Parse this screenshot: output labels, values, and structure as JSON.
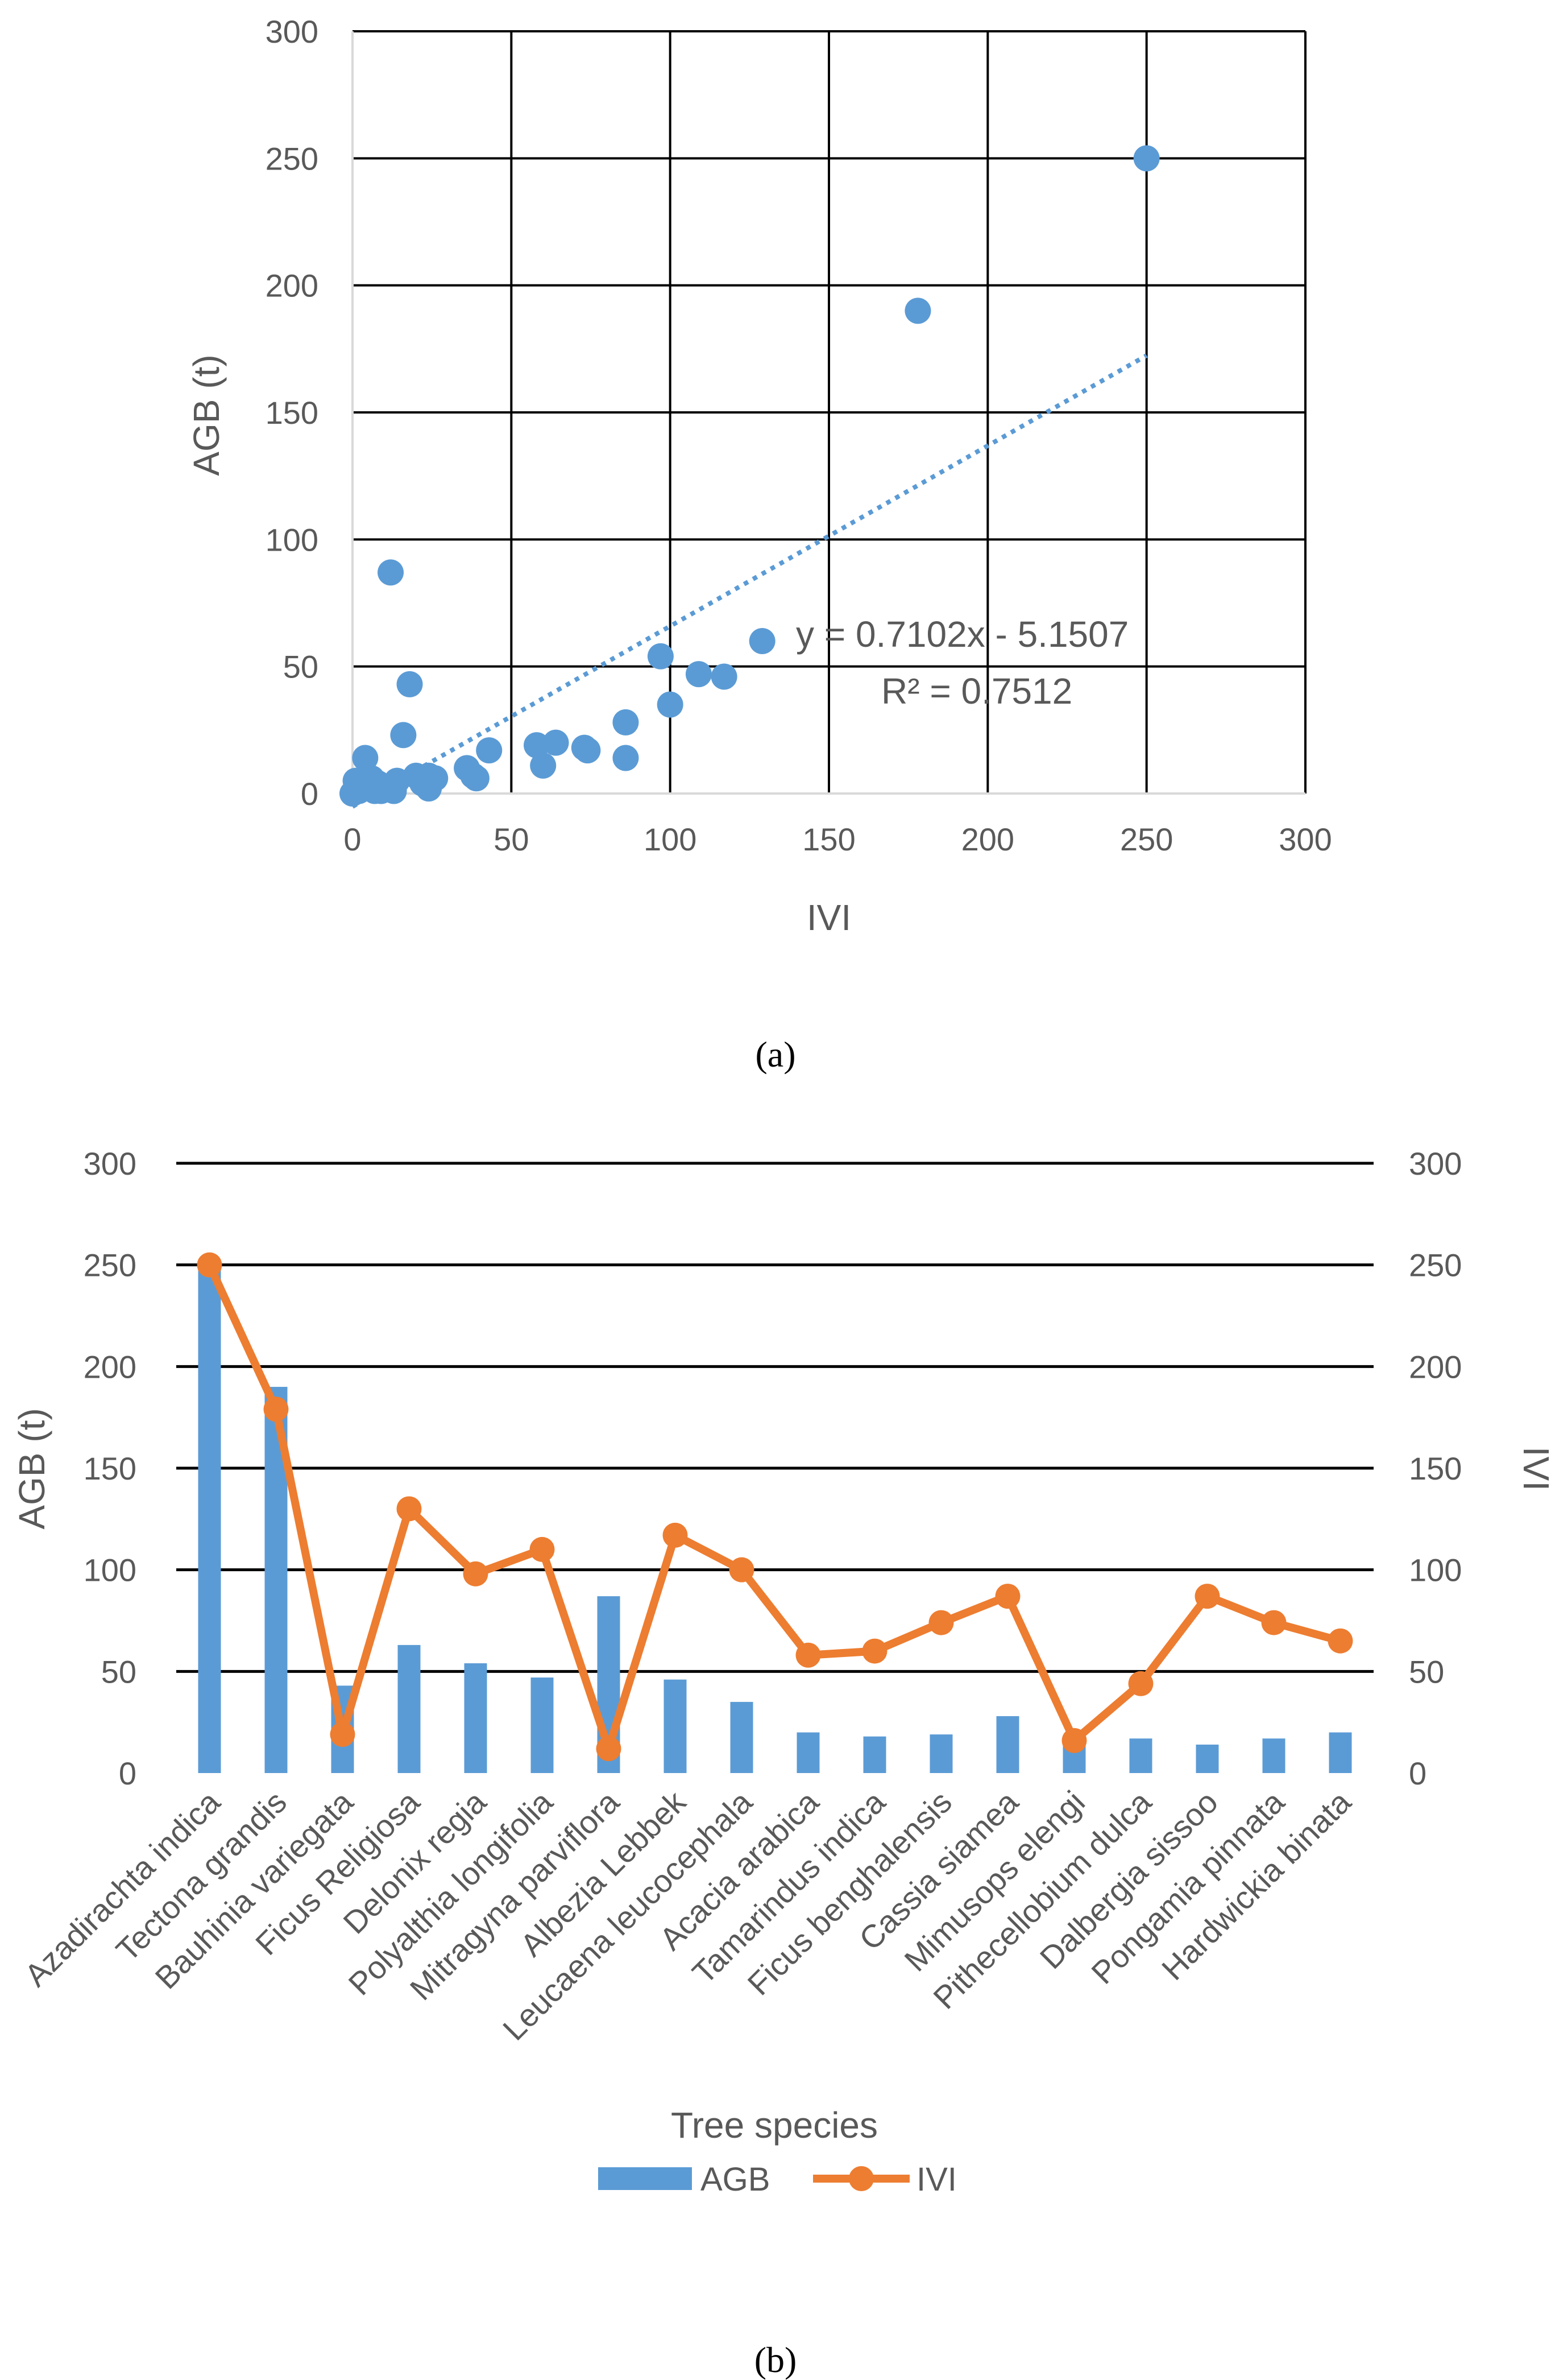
{
  "chart_data": [
    {
      "type": "scatter",
      "caption": "(a)",
      "xlabel": "IVI",
      "ylabel": "AGB (t)",
      "xlim": [
        0,
        300
      ],
      "ylim": [
        0,
        300
      ],
      "x_ticks": [
        "0",
        "50",
        "100",
        "150",
        "200",
        "250",
        "300"
      ],
      "y_ticks": [
        "0",
        "50",
        "100",
        "150",
        "200",
        "250",
        "300"
      ],
      "grid": true,
      "colors": {
        "points": "#5b9bd5",
        "trendline": "#5b9bd5",
        "grid": "#000000"
      },
      "trendline": {
        "slope": 0.7102,
        "intercept": -5.1507,
        "x_range": [
          0,
          250
        ],
        "style": "dotted"
      },
      "equation_label": "y = 0.7102x - 5.1507",
      "r2_label": "R² = 0.7512",
      "points": [
        {
          "x": 250,
          "y": 250
        },
        {
          "x": 178,
          "y": 190
        },
        {
          "x": 129,
          "y": 60
        },
        {
          "x": 97,
          "y": 54
        },
        {
          "x": 109,
          "y": 47
        },
        {
          "x": 117,
          "y": 46
        },
        {
          "x": 100,
          "y": 35
        },
        {
          "x": 86,
          "y": 28
        },
        {
          "x": 86,
          "y": 14
        },
        {
          "x": 73,
          "y": 18
        },
        {
          "x": 74,
          "y": 17
        },
        {
          "x": 64,
          "y": 20
        },
        {
          "x": 58,
          "y": 19
        },
        {
          "x": 60,
          "y": 11
        },
        {
          "x": 43,
          "y": 17
        },
        {
          "x": 36,
          "y": 10
        },
        {
          "x": 38,
          "y": 7
        },
        {
          "x": 39,
          "y": 6
        },
        {
          "x": 12,
          "y": 87
        },
        {
          "x": 18,
          "y": 43
        },
        {
          "x": 16,
          "y": 23
        },
        {
          "x": 4,
          "y": 14
        },
        {
          "x": 20,
          "y": 7
        },
        {
          "x": 24,
          "y": 7
        },
        {
          "x": 26,
          "y": 6
        },
        {
          "x": 22,
          "y": 4
        },
        {
          "x": 24,
          "y": 2
        },
        {
          "x": 14,
          "y": 5
        },
        {
          "x": 12,
          "y": 3
        },
        {
          "x": 10,
          "y": 2
        },
        {
          "x": 8,
          "y": 4
        },
        {
          "x": 6,
          "y": 6
        },
        {
          "x": 5,
          "y": 3
        },
        {
          "x": 3,
          "y": 2
        },
        {
          "x": 2,
          "y": 1
        },
        {
          "x": 1,
          "y": 5
        },
        {
          "x": 0,
          "y": 0
        },
        {
          "x": 7,
          "y": 1
        },
        {
          "x": 9,
          "y": 1
        },
        {
          "x": 13,
          "y": 1
        }
      ]
    },
    {
      "type": "bar+line",
      "caption": "(b)",
      "xlabel": "Tree species",
      "ylabel_left": "AGB (t)",
      "ylabel_right": "IVI",
      "ylim": [
        0,
        300
      ],
      "y_ticks": [
        "0",
        "50",
        "100",
        "150",
        "200",
        "250",
        "300"
      ],
      "grid": true,
      "legend": {
        "position": "bottom",
        "entries": [
          "AGB",
          "IVI"
        ]
      },
      "colors": {
        "AGB": "#5b9bd5",
        "IVI": "#ed7d31",
        "grid": "#000000"
      },
      "categories": [
        "Azadirachta indica",
        "Tectona grandis",
        "Bauhinia variegata",
        "Ficus Religiosa",
        "Delonix regia",
        "Polyalthia longifolia",
        "Mitragyna parviflora",
        "Albezia Lebbek",
        "Leucaena leucocephala",
        "Acacia arabica",
        "Tamarindus indica",
        "Ficus benghalensis",
        "Cassia siamea",
        "Mimusops elengi",
        "Pithecellobium dulca",
        "Dalbergia sissoo",
        "Pongamia pinnata",
        "Hardwickia binata"
      ],
      "series": [
        {
          "name": "AGB",
          "kind": "bar",
          "axis": "left",
          "values": [
            250,
            190,
            43,
            63,
            54,
            47,
            87,
            46,
            35,
            20,
            18,
            19,
            28,
            17,
            17,
            14,
            17,
            20
          ]
        },
        {
          "name": "IVI",
          "kind": "line",
          "axis": "right",
          "values": [
            250,
            179,
            19,
            130,
            98,
            110,
            12,
            117,
            100,
            58,
            60,
            74,
            87,
            16,
            44,
            87,
            74,
            65
          ]
        }
      ]
    }
  ]
}
